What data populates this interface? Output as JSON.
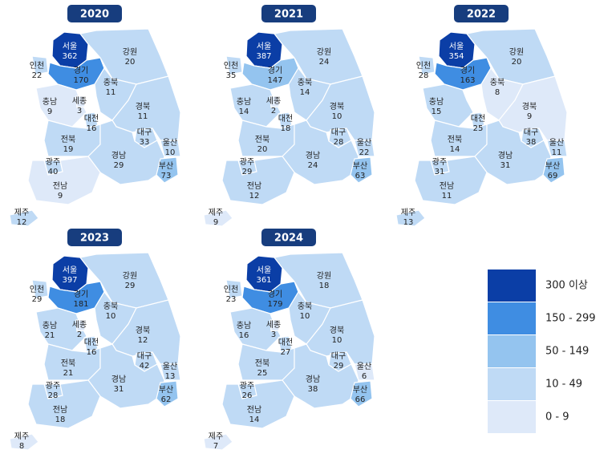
{
  "maps": [
    {
      "year": "2020",
      "regions": [
        {
          "name": "서울",
          "value": 362
        },
        {
          "name": "인천",
          "value": 22
        },
        {
          "name": "경기",
          "value": 170
        },
        {
          "name": "강원",
          "value": 20
        },
        {
          "name": "충북",
          "value": 11
        },
        {
          "name": "충남",
          "value": 9
        },
        {
          "name": "대전",
          "value": 16
        },
        {
          "name": "경북",
          "value": 11
        },
        {
          "name": "대구",
          "value": 33
        },
        {
          "name": "울산",
          "value": 10
        },
        {
          "name": "전북",
          "value": 19
        },
        {
          "name": "경남",
          "value": 29
        },
        {
          "name": "부산",
          "value": 73
        },
        {
          "name": "광주",
          "value": 40
        },
        {
          "name": "전남",
          "value": 9
        },
        {
          "name": "제주",
          "value": 12
        },
        {
          "name": "세종",
          "value": 3
        }
      ]
    },
    {
      "year": "2021",
      "regions": [
        {
          "name": "서울",
          "value": 387
        },
        {
          "name": "인천",
          "value": 35
        },
        {
          "name": "경기",
          "value": 147
        },
        {
          "name": "강원",
          "value": 24
        },
        {
          "name": "충북",
          "value": 14
        },
        {
          "name": "충남",
          "value": 14
        },
        {
          "name": "대전",
          "value": 18
        },
        {
          "name": "경북",
          "value": 10
        },
        {
          "name": "대구",
          "value": 28
        },
        {
          "name": "울산",
          "value": 22
        },
        {
          "name": "전북",
          "value": 20
        },
        {
          "name": "경남",
          "value": 24
        },
        {
          "name": "부산",
          "value": 63
        },
        {
          "name": "광주",
          "value": 29
        },
        {
          "name": "전남",
          "value": 12
        },
        {
          "name": "제주",
          "value": 9
        },
        {
          "name": "세종",
          "value": 2
        }
      ]
    },
    {
      "year": "2022",
      "regions": [
        {
          "name": "서울",
          "value": 354
        },
        {
          "name": "인천",
          "value": 28
        },
        {
          "name": "경기",
          "value": 163
        },
        {
          "name": "강원",
          "value": 20
        },
        {
          "name": "충북",
          "value": 8
        },
        {
          "name": "충남",
          "value": 15
        },
        {
          "name": "대전",
          "value": 25
        },
        {
          "name": "경북",
          "value": 9
        },
        {
          "name": "대구",
          "value": 38
        },
        {
          "name": "울산",
          "value": 11
        },
        {
          "name": "전북",
          "value": 14
        },
        {
          "name": "경남",
          "value": 31
        },
        {
          "name": "부산",
          "value": 69
        },
        {
          "name": "광주",
          "value": 31
        },
        {
          "name": "전남",
          "value": 11
        },
        {
          "name": "제주",
          "value": 13
        }
      ]
    },
    {
      "year": "2023",
      "regions": [
        {
          "name": "서울",
          "value": 397
        },
        {
          "name": "인천",
          "value": 29
        },
        {
          "name": "경기",
          "value": 181
        },
        {
          "name": "강원",
          "value": 29
        },
        {
          "name": "충북",
          "value": 10
        },
        {
          "name": "충남",
          "value": 21
        },
        {
          "name": "대전",
          "value": 16
        },
        {
          "name": "경북",
          "value": 12
        },
        {
          "name": "대구",
          "value": 42
        },
        {
          "name": "울산",
          "value": 13
        },
        {
          "name": "전북",
          "value": 21
        },
        {
          "name": "경남",
          "value": 31
        },
        {
          "name": "부산",
          "value": 62
        },
        {
          "name": "광주",
          "value": 28
        },
        {
          "name": "전남",
          "value": 18
        },
        {
          "name": "제주",
          "value": 8
        },
        {
          "name": "세종",
          "value": 2
        }
      ]
    },
    {
      "year": "2024",
      "regions": [
        {
          "name": "서울",
          "value": 361
        },
        {
          "name": "인천",
          "value": 23
        },
        {
          "name": "경기",
          "value": 179
        },
        {
          "name": "강원",
          "value": 18
        },
        {
          "name": "충북",
          "value": 10
        },
        {
          "name": "충남",
          "value": 16
        },
        {
          "name": "대전",
          "value": 27
        },
        {
          "name": "경북",
          "value": 10
        },
        {
          "name": "대구",
          "value": 29
        },
        {
          "name": "울산",
          "value": 6
        },
        {
          "name": "전북",
          "value": 25
        },
        {
          "name": "경남",
          "value": 38
        },
        {
          "name": "부산",
          "value": 66
        },
        {
          "name": "광주",
          "value": 26
        },
        {
          "name": "전남",
          "value": 14
        },
        {
          "name": "제주",
          "value": 7
        },
        {
          "name": "세종",
          "value": 3
        }
      ]
    }
  ],
  "legend": [
    {
      "value": 300,
      "label": "300 이상",
      "color": "#0b3ea6"
    },
    {
      "value": 150,
      "label": "150 - 299",
      "color": "#3f8de2"
    },
    {
      "value": 50,
      "label": "50 - 149",
      "color": "#94c4ef"
    },
    {
      "value": 10,
      "label": "10 - 49",
      "color": "#bfdaf5"
    },
    {
      "value": 0,
      "label": "0 - 9",
      "color": "#dee9f9"
    }
  ]
}
